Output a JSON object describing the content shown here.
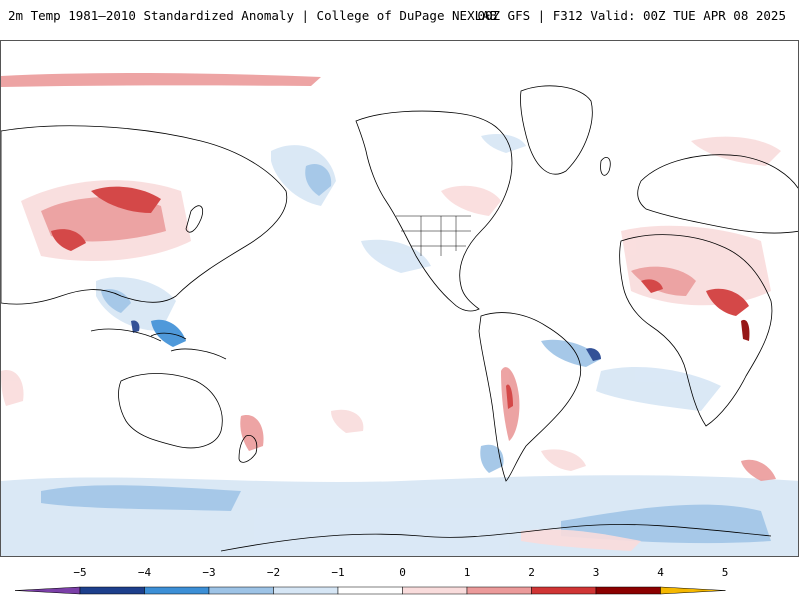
{
  "header": {
    "title_left": "2m Temp 1981–2010 Standardized Anomaly | College of DuPage NEXLAB",
    "title_right": "00Z GFS | F312 Valid: 00Z TUE APR 08 2025"
  },
  "colorbar": {
    "ticks": [
      "−5",
      "−4",
      "−3",
      "−2",
      "−1",
      "0",
      "1",
      "2",
      "3",
      "4",
      "5"
    ],
    "colors": {
      "below_min": "#7b3fa8",
      "neg5_neg4": "#1d3f8c",
      "neg4_neg3": "#3c8fd6",
      "neg3_neg2": "#9dc3e6",
      "neg2_neg1": "#d6e6f5",
      "neg1_1": "#ffffff",
      "pos1_pos2": "#f9dcdc",
      "pos2_pos3": "#eb9a9a",
      "pos3_pos4": "#d03535",
      "pos4_pos5": "#8b0000",
      "above_max": "#f5b800"
    }
  },
  "map": {
    "projection": "global equirectangular",
    "coastline_color": "#000000"
  }
}
